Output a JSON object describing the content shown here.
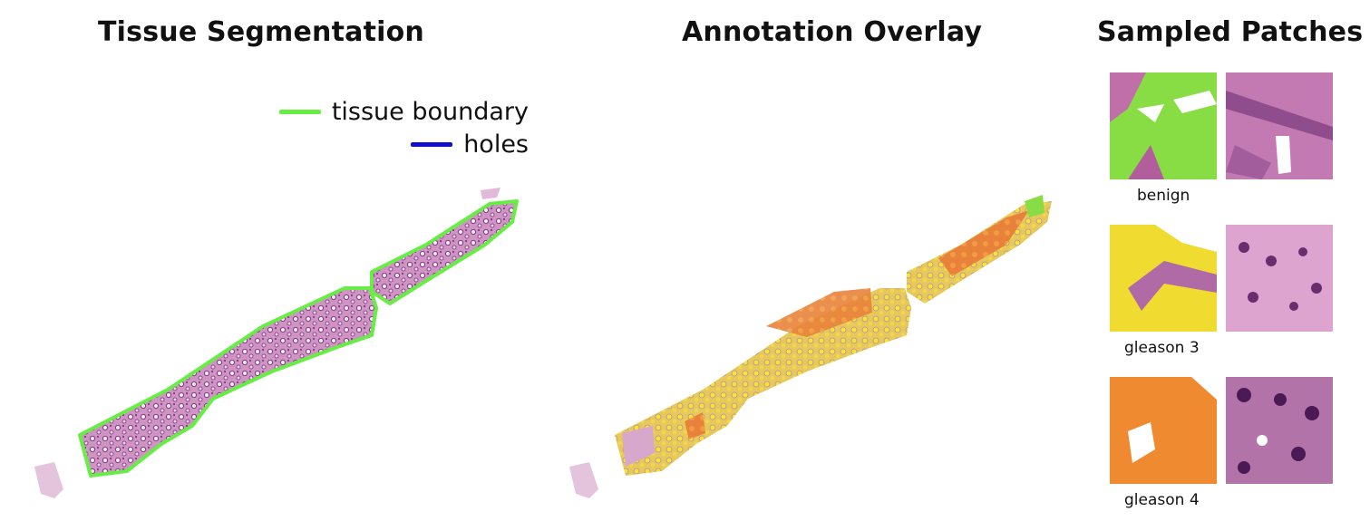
{
  "panels": {
    "segmentation": {
      "title": "Tissue Segmentation",
      "legend": [
        {
          "label": "tissue boundary",
          "color": "#66ee44"
        },
        {
          "label": "holes",
          "color": "#1010cc"
        }
      ]
    },
    "overlay": {
      "title": "Annotation Overlay"
    },
    "patches": {
      "title": "Sampled Patches",
      "rows": [
        {
          "label": "benign",
          "mask_color": "#88dd44"
        },
        {
          "label": "gleason 3",
          "mask_color": "#f0dc30"
        },
        {
          "label": "gleason 4",
          "mask_color": "#f08a30"
        }
      ]
    }
  },
  "colors": {
    "tissue": "#c98ab8",
    "tissue_dark": "#8a4e8a",
    "boundary": "#66ee44"
  }
}
